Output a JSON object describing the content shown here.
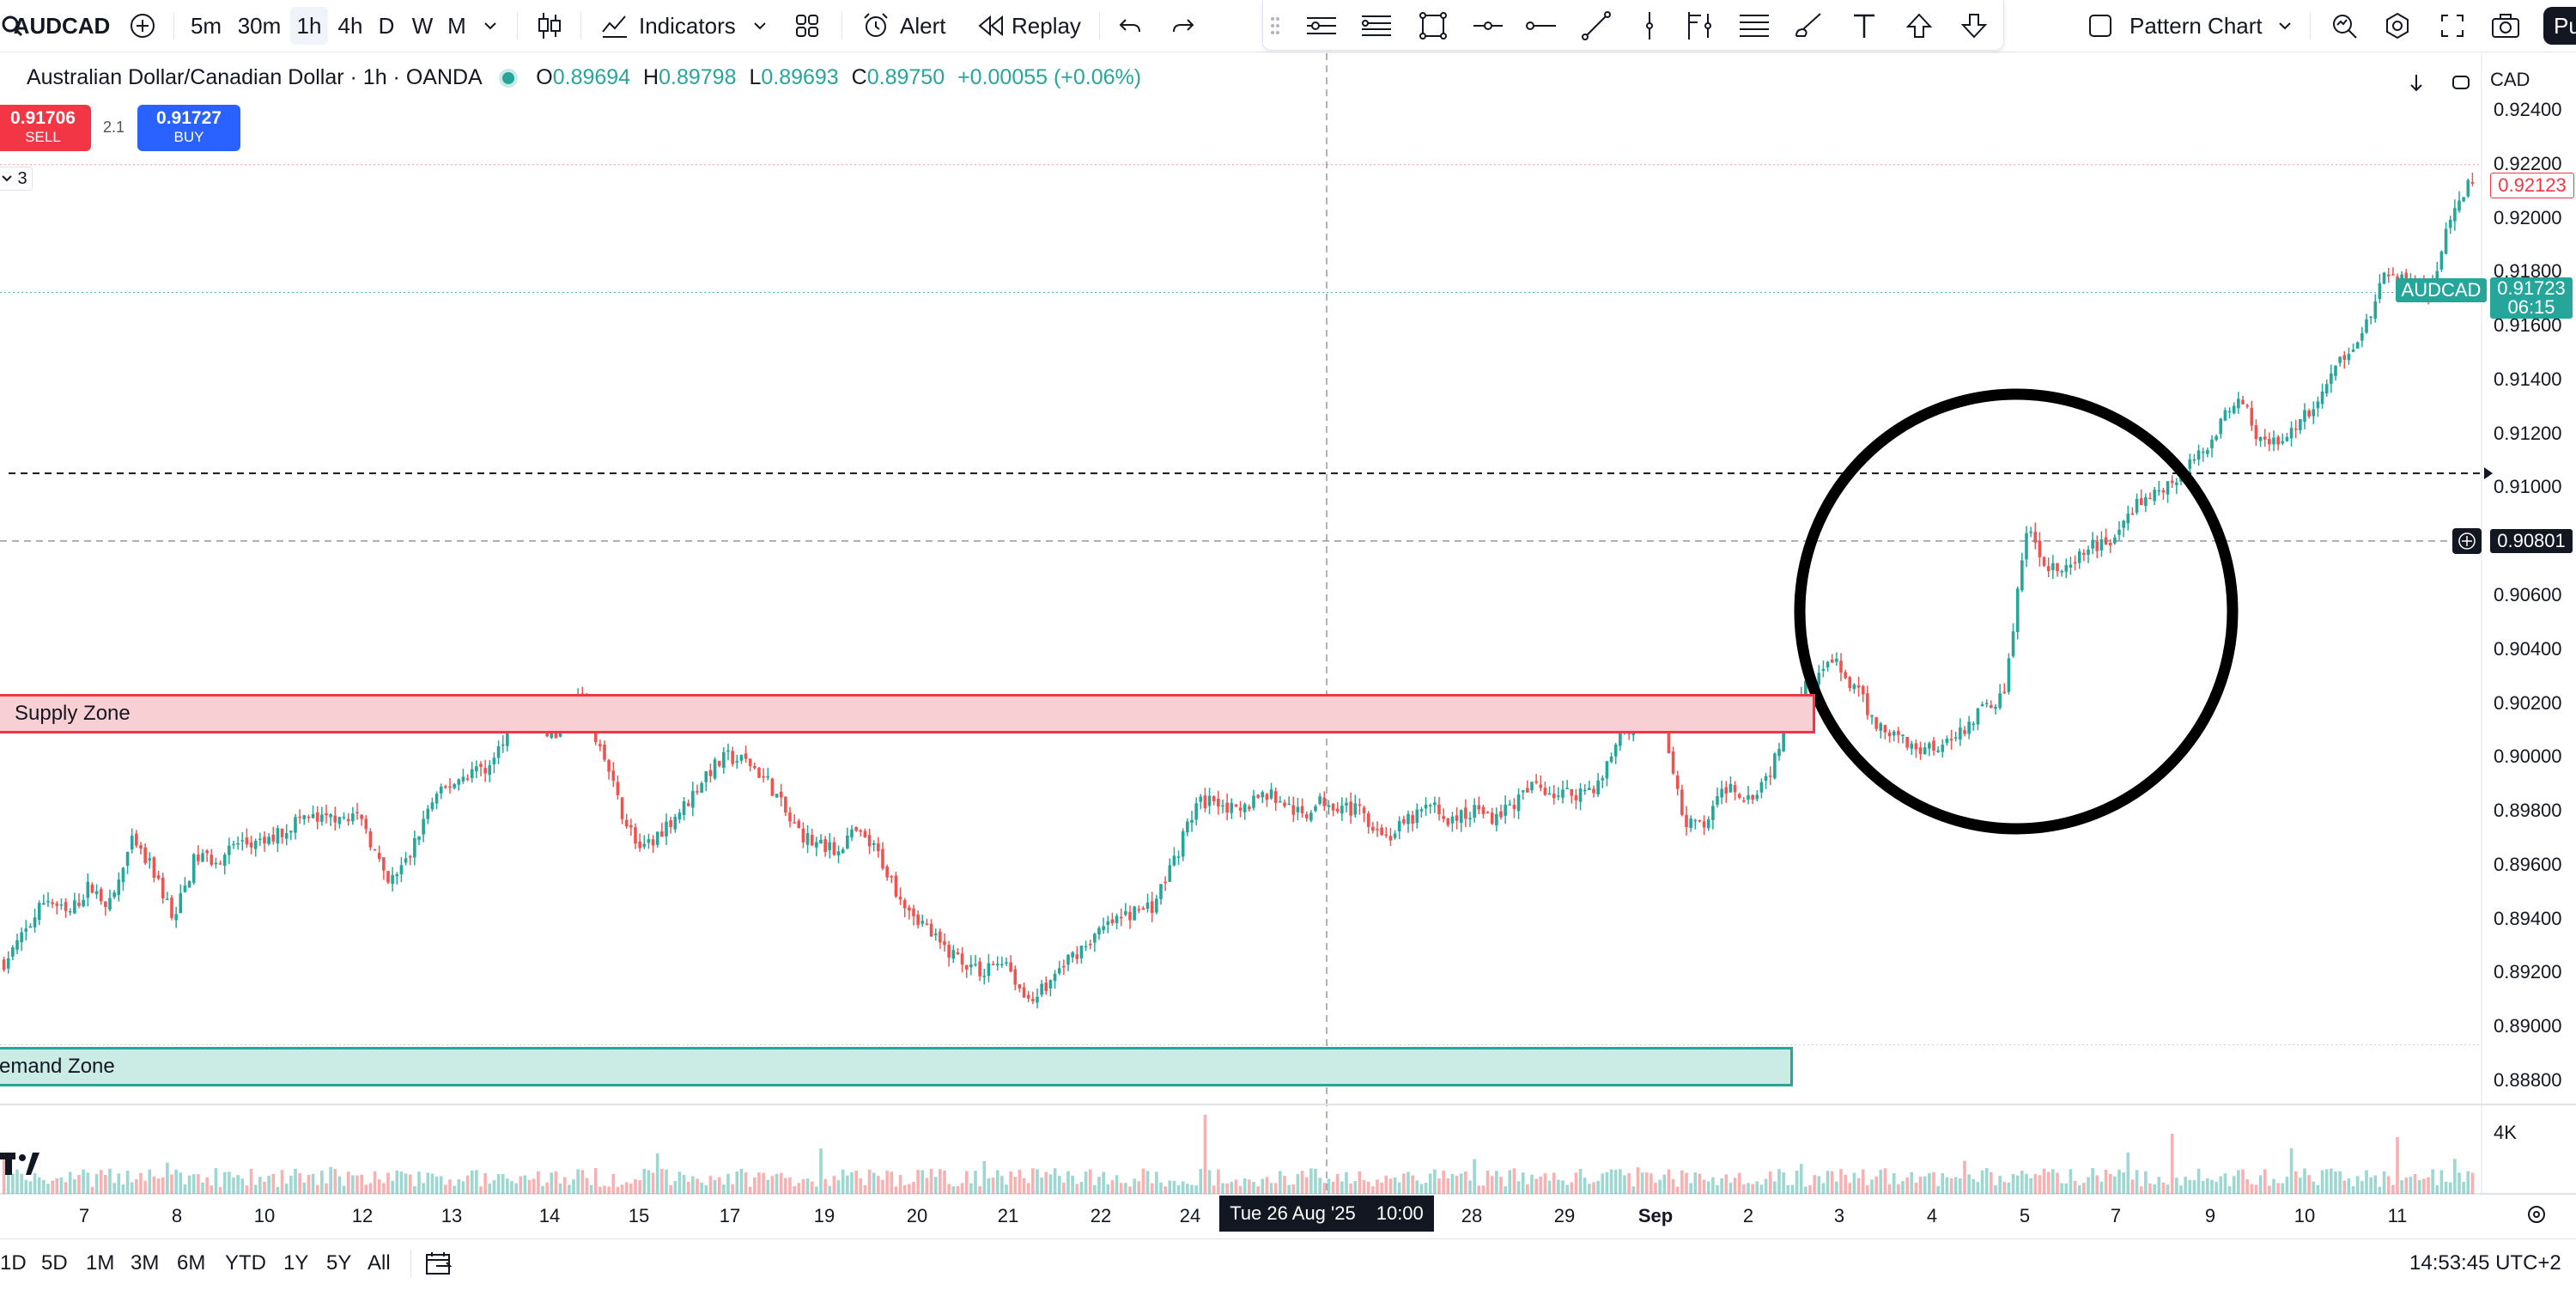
{
  "toolbar": {
    "symbol": "AUDCAD",
    "timeframes": [
      "5m",
      "30m",
      "1h",
      "4h",
      "D",
      "W",
      "M"
    ],
    "active_timeframe": "1h",
    "indicators_label": "Indicators",
    "alert_label": "Alert",
    "replay_label": "Replay",
    "pattern_chart_label": "Pattern Chart",
    "publish_partial": "Pu"
  },
  "legend": {
    "title": "Australian Dollar/Canadian Dollar · 1h · OANDA",
    "o_label": "O",
    "o_value": "0.89694",
    "h_label": "H",
    "h_value": "0.89798",
    "l_label": "L",
    "l_value": "0.89693",
    "c_label": "C",
    "c_value": "0.89750",
    "change": "+0.00055 (+0.06%)",
    "sell_price": "0.91706",
    "sell_label": "SELL",
    "spread": "2.1",
    "buy_price": "0.91727",
    "buy_label": "BUY",
    "collapse_count": "3"
  },
  "chart_controls": {
    "currency": "CAD"
  },
  "chart_data": {
    "type": "candlestick",
    "symbol": "AUDCAD",
    "interval": "1h",
    "y_ticks": [
      "0.92400",
      "0.92200",
      "0.92000",
      "0.91800",
      "0.91600",
      "0.91400",
      "0.91200",
      "0.91000",
      "0.90800",
      "0.90600",
      "0.90400",
      "0.90200",
      "0.90000",
      "0.89800",
      "0.89600",
      "0.89400",
      "0.89200",
      "0.89000",
      "0.88800"
    ],
    "ylim": [
      0.887,
      0.9244
    ],
    "x_ticks": [
      "7",
      "8",
      "10",
      "12",
      "13",
      "14",
      "15",
      "17",
      "19",
      "20",
      "21",
      "22",
      "24",
      "28",
      "29",
      "Sep",
      "2",
      "3",
      "4",
      "5",
      "7",
      "9",
      "10",
      "11"
    ],
    "crosshair_date": "Tue 26 Aug '25",
    "crosshair_time": "10:00",
    "crosshair_price": "0.90801",
    "last_price": "0.91723",
    "countdown": "06:15",
    "symbol_tag": "AUDCAD",
    "high_marker": "0.92123",
    "volume_label": "4K",
    "path_anchors": [
      [
        0,
        0.8924
      ],
      [
        1,
        0.8935
      ],
      [
        2,
        0.8948
      ],
      [
        3,
        0.8941
      ],
      [
        4,
        0.8952
      ],
      [
        5,
        0.8945
      ],
      [
        6,
        0.8968
      ],
      [
        7,
        0.8958
      ],
      [
        8,
        0.894
      ],
      [
        9,
        0.8963
      ],
      [
        10,
        0.8962
      ],
      [
        11,
        0.8968
      ],
      [
        12,
        0.8967
      ],
      [
        13,
        0.8972
      ],
      [
        14,
        0.8978
      ],
      [
        15,
        0.8976
      ],
      [
        16,
        0.898
      ],
      [
        17,
        0.8974
      ],
      [
        18,
        0.8952
      ],
      [
        19,
        0.8962
      ],
      [
        20,
        0.8982
      ],
      [
        21,
        0.899
      ],
      [
        22,
        0.8995
      ],
      [
        23,
        0.8997
      ],
      [
        24,
        0.902
      ],
      [
        25,
        0.901
      ],
      [
        26,
        0.9008
      ],
      [
        27,
        0.9022
      ],
      [
        28,
        0.9004
      ],
      [
        29,
        0.898
      ],
      [
        30,
        0.8964
      ],
      [
        31,
        0.8974
      ],
      [
        32,
        0.8982
      ],
      [
        33,
        0.8994
      ],
      [
        34,
        0.9
      ],
      [
        35,
        0.8998
      ],
      [
        36,
        0.899
      ],
      [
        37,
        0.8975
      ],
      [
        38,
        0.8968
      ],
      [
        39,
        0.8965
      ],
      [
        40,
        0.8972
      ],
      [
        41,
        0.8965
      ],
      [
        42,
        0.895
      ],
      [
        43,
        0.894
      ],
      [
        44,
        0.893
      ],
      [
        45,
        0.8925
      ],
      [
        46,
        0.892
      ],
      [
        47,
        0.8926
      ],
      [
        48,
        0.891
      ],
      [
        49,
        0.8915
      ],
      [
        50,
        0.8925
      ],
      [
        51,
        0.8932
      ],
      [
        52,
        0.8938
      ],
      [
        53,
        0.8942
      ],
      [
        54,
        0.8945
      ],
      [
        55,
        0.8962
      ],
      [
        56,
        0.8982
      ],
      [
        57,
        0.8985
      ],
      [
        58,
        0.8978
      ],
      [
        59,
        0.8987
      ],
      [
        60,
        0.8984
      ],
      [
        61,
        0.8978
      ],
      [
        62,
        0.8984
      ],
      [
        63,
        0.8982
      ],
      [
        64,
        0.8978
      ],
      [
        65,
        0.897
      ],
      [
        66,
        0.8976
      ],
      [
        67,
        0.8982
      ],
      [
        68,
        0.8976
      ],
      [
        69,
        0.898
      ],
      [
        70,
        0.8978
      ],
      [
        71,
        0.8983
      ],
      [
        72,
        0.899
      ],
      [
        73,
        0.8986
      ],
      [
        74,
        0.8987
      ],
      [
        75,
        0.899
      ],
      [
        76,
        0.901
      ],
      [
        77,
        0.9014
      ],
      [
        78,
        0.9012
      ],
      [
        79,
        0.8975
      ],
      [
        80,
        0.8975
      ],
      [
        81,
        0.899
      ],
      [
        82,
        0.8985
      ],
      [
        83,
        0.8995
      ],
      [
        84,
        0.902
      ],
      [
        85,
        0.903
      ],
      [
        86,
        0.9035
      ],
      [
        87,
        0.9025
      ],
      [
        88,
        0.9012
      ],
      [
        89,
        0.9008
      ],
      [
        90,
        0.9003
      ],
      [
        91,
        0.9005
      ],
      [
        92,
        0.901
      ],
      [
        93,
        0.9018
      ],
      [
        94,
        0.9023
      ],
      [
        95,
        0.9084
      ],
      [
        96,
        0.9072
      ],
      [
        97,
        0.9068
      ],
      [
        98,
        0.9078
      ],
      [
        99,
        0.908
      ],
      [
        100,
        0.9092
      ],
      [
        101,
        0.9098
      ],
      [
        102,
        0.9102
      ],
      [
        103,
        0.911
      ],
      [
        104,
        0.9122
      ],
      [
        105,
        0.9134
      ],
      [
        106,
        0.9118
      ],
      [
        107,
        0.9116
      ],
      [
        108,
        0.9125
      ],
      [
        109,
        0.9135
      ],
      [
        110,
        0.915
      ],
      [
        111,
        0.916
      ],
      [
        112,
        0.918
      ],
      [
        113,
        0.9175
      ],
      [
        114,
        0.9172
      ],
      [
        115,
        0.92
      ],
      [
        116,
        0.9215
      ]
    ],
    "anchor_x_range": [
      0,
      116
    ]
  },
  "zones": {
    "supply": "Supply Zone",
    "demand": "emand Zone"
  },
  "bottombar": {
    "ranges": [
      "1D",
      "5D",
      "1M",
      "3M",
      "6M",
      "YTD",
      "1Y",
      "5Y",
      "All"
    ],
    "clock": "14:53:45 UTC+2"
  },
  "colors": {
    "up": "#26a69a",
    "down": "#ef5350",
    "accent": "#2962ff",
    "supply_fill": "#f8d0d3",
    "supply_border": "#f23645",
    "demand_fill": "#cbebe5",
    "demand_border": "#26a69a"
  }
}
